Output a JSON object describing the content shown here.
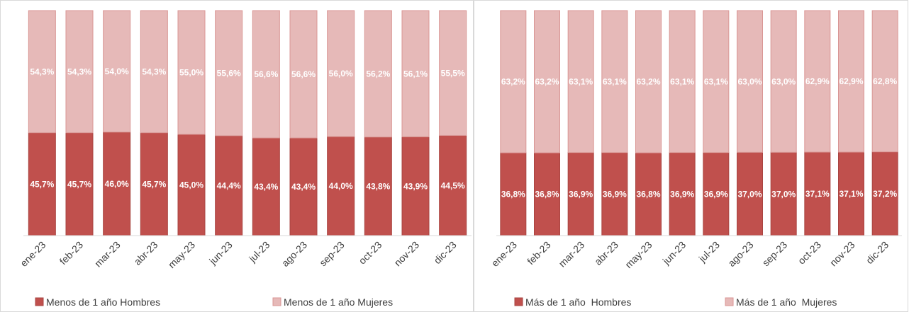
{
  "chart_data": [
    {
      "type": "bar",
      "stacked": true,
      "categories": [
        "ene-23",
        "feb-23",
        "mar-23",
        "abr-23",
        "may-23",
        "jun-23",
        "jul-23",
        "ago-23",
        "sep-23",
        "oct-23",
        "nov-23",
        "dic-23"
      ],
      "ylim": [
        0,
        100
      ],
      "legend": "bottom",
      "series": [
        {
          "name": "Menos de 1 año Hombres",
          "color": "#c0504d",
          "values": [
            45.7,
            45.7,
            46.0,
            45.7,
            45.0,
            44.4,
            43.4,
            43.4,
            44.0,
            43.8,
            43.9,
            44.5
          ],
          "value_labels": [
            "45,7%",
            "45,7%",
            "46,0%",
            "45,7%",
            "45,0%",
            "44,4%",
            "43,4%",
            "43,4%",
            "44,0%",
            "43,8%",
            "43,9%",
            "44,5%"
          ]
        },
        {
          "name": "Menos de 1 año Mujeres",
          "color": "#e6b9b8",
          "values": [
            54.3,
            54.3,
            54.0,
            54.3,
            55.0,
            55.6,
            56.6,
            56.6,
            56.0,
            56.2,
            56.1,
            55.5
          ],
          "value_labels": [
            "54,3%",
            "54,3%",
            "54,0%",
            "54,3%",
            "55,0%",
            "55,6%",
            "56,6%",
            "56,6%",
            "56,0%",
            "56,2%",
            "56,1%",
            "55,5%"
          ]
        }
      ]
    },
    {
      "type": "bar",
      "stacked": true,
      "categories": [
        "ene-23",
        "feb-23",
        "mar-23",
        "abr-23",
        "may-23",
        "jun-23",
        "jul-23",
        "ago-23",
        "sep-23",
        "oct-23",
        "nov-23",
        "dic-23"
      ],
      "ylim": [
        0,
        100
      ],
      "legend": "bottom",
      "series": [
        {
          "name": "Más de 1 año  Hombres",
          "color": "#c0504d",
          "values": [
            36.8,
            36.8,
            36.9,
            36.9,
            36.8,
            36.9,
            36.9,
            37.0,
            37.0,
            37.1,
            37.1,
            37.2
          ],
          "value_labels": [
            "36,8%",
            "36,8%",
            "36,9%",
            "36,9%",
            "36,8%",
            "36,9%",
            "36,9%",
            "37,0%",
            "37,0%",
            "37,1%",
            "37,1%",
            "37,2%"
          ]
        },
        {
          "name": "Más de 1 año  Mujeres",
          "color": "#e6b9b8",
          "values": [
            63.2,
            63.2,
            63.1,
            63.1,
            63.2,
            63.1,
            63.1,
            63.0,
            63.0,
            62.9,
            62.9,
            62.8
          ],
          "value_labels": [
            "63,2%",
            "63,2%",
            "63,1%",
            "63,1%",
            "63,2%",
            "63,1%",
            "63,1%",
            "63,0%",
            "63,0%",
            "62,9%",
            "62,9%",
            "62,8%"
          ]
        }
      ]
    }
  ]
}
